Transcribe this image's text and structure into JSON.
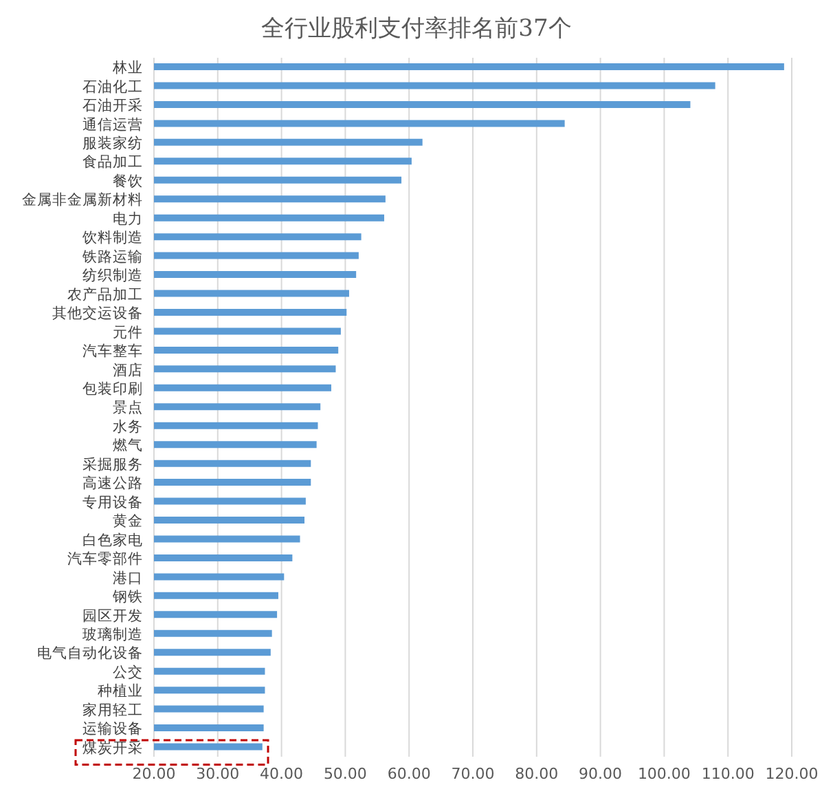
{
  "chart_data": {
    "type": "bar",
    "orientation": "horizontal",
    "title": "全行业股利支付率排名前37个",
    "categories": [
      "林业",
      "石油化工",
      "石油开采",
      "通信运营",
      "服装家纺",
      "食品加工",
      "餐饮",
      "金属非金属新材料",
      "电力",
      "饮料制造",
      "铁路运输",
      "纺织制造",
      "农产品加工",
      "其他交运设备",
      "元件",
      "汽车整车",
      "酒店",
      "包装印刷",
      "景点",
      "水务",
      "燃气",
      "采掘服务",
      "高速公路",
      "专用设备",
      "黄金",
      "白色家电",
      "汽车零部件",
      "港口",
      "钢铁",
      "园区开发",
      "玻璃制造",
      "电气自动化设备",
      "公交",
      "种植业",
      "家用轻工",
      "运输设备",
      "煤炭开采"
    ],
    "values": [
      118.8,
      108.0,
      104.1,
      84.4,
      62.1,
      60.4,
      58.8,
      56.3,
      56.1,
      52.5,
      52.1,
      51.7,
      50.6,
      50.2,
      49.3,
      48.9,
      48.5,
      47.8,
      46.1,
      45.7,
      45.5,
      44.6,
      44.6,
      43.8,
      43.6,
      42.9,
      41.7,
      40.4,
      39.5,
      39.3,
      38.5,
      38.3,
      37.4,
      37.4,
      37.2,
      37.2,
      37.0
    ],
    "color": "#5b9bd5",
    "xlim": [
      20,
      120
    ],
    "xticks": [
      {
        "value": 20,
        "label": "20.00"
      },
      {
        "value": 30,
        "label": "30.00"
      },
      {
        "value": 40,
        "label": "40.00"
      },
      {
        "value": 50,
        "label": "50.00"
      },
      {
        "value": 60,
        "label": "60.00"
      },
      {
        "value": 70,
        "label": "70.00"
      },
      {
        "value": 80,
        "label": "80.00"
      },
      {
        "value": 90,
        "label": "90.00"
      },
      {
        "value": 100,
        "label": "100.00"
      },
      {
        "value": 110,
        "label": "110.00"
      },
      {
        "value": 120,
        "label": "120.00"
      }
    ],
    "grid": "x"
  }
}
